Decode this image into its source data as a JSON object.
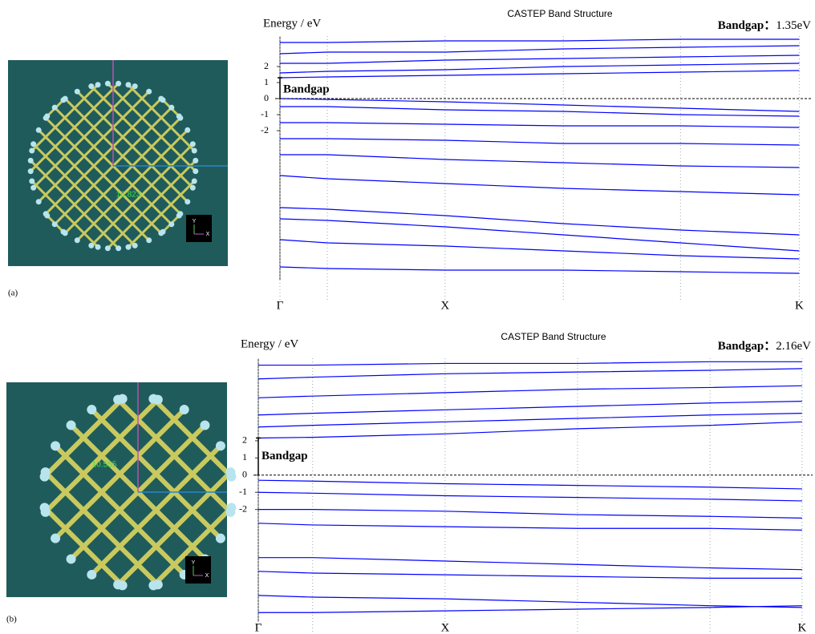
{
  "chart_data": [
    {
      "type": "line",
      "title": "CASTEP Band Structure",
      "y_label": "Energy / eV",
      "bandgap_label": "Bandgap：",
      "bandgap_value": "1.35eV",
      "annotation": "Bandgap",
      "line_color": "#0000ff",
      "zero_line": true,
      "x": [
        0,
        0.089,
        0.31,
        0.532,
        0.752,
        0.975
      ],
      "xlim": [
        0,
        1
      ],
      "xticks": [
        {
          "value": 0,
          "label": "Γ"
        },
        {
          "value": 0.089,
          "label": null
        },
        {
          "value": 0.31,
          "label": "X"
        },
        {
          "value": 0.532,
          "label": null
        },
        {
          "value": 0.752,
          "label": null
        },
        {
          "value": 0.975,
          "label": "K"
        }
      ],
      "ylim": [
        -11.35,
        3.9
      ],
      "yticks": [
        2,
        1,
        0,
        -1,
        -2
      ],
      "series": [
        {
          "values": [
            1.3,
            1.35,
            1.45,
            1.55,
            1.65,
            1.75
          ]
        },
        {
          "values": [
            1.6,
            1.7,
            1.8,
            2.0,
            2.1,
            2.2
          ]
        },
        {
          "values": [
            2.2,
            2.2,
            2.4,
            2.5,
            2.6,
            2.7
          ]
        },
        {
          "values": [
            2.8,
            2.9,
            2.9,
            3.1,
            3.2,
            3.3
          ]
        },
        {
          "values": [
            3.5,
            3.5,
            3.6,
            3.6,
            3.7,
            3.7
          ]
        },
        {
          "values": [
            0,
            -0.05,
            -0.2,
            -0.4,
            -0.6,
            -0.8
          ]
        },
        {
          "values": [
            -0.5,
            -0.5,
            -0.7,
            -0.8,
            -1,
            -1.1
          ]
        },
        {
          "values": [
            -1.5,
            -1.5,
            -1.6,
            -1.7,
            -1.7,
            -1.8
          ]
        },
        {
          "values": [
            -2.5,
            -2.5,
            -2.6,
            -2.8,
            -2.8,
            -2.9
          ]
        },
        {
          "values": [
            -3.5,
            -3.5,
            -3.8,
            -4,
            -4.2,
            -4.3
          ]
        },
        {
          "values": [
            -4.8,
            -5,
            -5.3,
            -5.6,
            -5.8,
            -6
          ]
        },
        {
          "values": [
            -6.8,
            -6.9,
            -7.3,
            -7.8,
            -8.2,
            -8.5
          ]
        },
        {
          "values": [
            -7.5,
            -7.6,
            -8,
            -8.5,
            -9,
            -9.5
          ]
        },
        {
          "values": [
            -8.8,
            -9,
            -9.2,
            -9.5,
            -9.8,
            -10
          ]
        },
        {
          "values": [
            -10.5,
            -10.6,
            -10.7,
            -10.7,
            -10.8,
            -10.9
          ]
        }
      ]
    },
    {
      "type": "line",
      "title": "CASTEP Band Structure",
      "y_label": "Energy / eV",
      "bandgap_label": "Bandgap：",
      "bandgap_value": "2.16eV",
      "annotation": "Bandgap",
      "line_color": "#0000ff",
      "zero_line": true,
      "x": [
        0,
        0.098,
        0.337,
        0.576,
        0.815,
        0.981
      ],
      "xlim": [
        0,
        1
      ],
      "xticks": [
        {
          "value": 0,
          "label": "Γ"
        },
        {
          "value": 0.098,
          "label": null
        },
        {
          "value": 0.337,
          "label": "X"
        },
        {
          "value": 0.576,
          "label": null
        },
        {
          "value": 0.815,
          "label": null
        },
        {
          "value": 0.981,
          "label": "K"
        }
      ],
      "ylim": [
        -8.5,
        6.8
      ],
      "yticks": [
        2,
        1,
        0,
        -1,
        -2
      ],
      "series": [
        {
          "values": [
            2.16,
            2.2,
            2.4,
            2.7,
            2.9,
            3.1
          ]
        },
        {
          "values": [
            2.8,
            2.9,
            3.1,
            3.3,
            3.5,
            3.6
          ]
        },
        {
          "values": [
            3.5,
            3.6,
            3.8,
            4,
            4.2,
            4.3
          ]
        },
        {
          "values": [
            4.5,
            4.6,
            4.8,
            5,
            5.1,
            5.2
          ]
        },
        {
          "values": [
            5.6,
            5.7,
            5.9,
            6,
            6.1,
            6.2
          ]
        },
        {
          "values": [
            6.4,
            6.4,
            6.5,
            6.5,
            6.6,
            6.6
          ]
        },
        {
          "values": [
            -0.3,
            -0.35,
            -0.5,
            -0.6,
            -0.7,
            -0.8
          ]
        },
        {
          "values": [
            -1,
            -1.05,
            -1.2,
            -1.3,
            -1.4,
            -1.5
          ]
        },
        {
          "values": [
            -2,
            -2,
            -2.1,
            -2.3,
            -2.4,
            -2.5
          ]
        },
        {
          "values": [
            -2.8,
            -2.9,
            -3,
            -3.1,
            -3.1,
            -3.2
          ]
        },
        {
          "values": [
            -4.8,
            -4.8,
            -5,
            -5.2,
            -5.4,
            -5.5
          ]
        },
        {
          "values": [
            -5.6,
            -5.7,
            -5.8,
            -5.9,
            -6,
            -6
          ]
        },
        {
          "values": [
            -7,
            -7.1,
            -7.2,
            -7.4,
            -7.6,
            -7.7
          ]
        },
        {
          "values": [
            -8,
            -8,
            -7.9,
            -7.8,
            -7.7,
            -7.6
          ]
        }
      ]
    }
  ],
  "panels": [
    {
      "label": "(a)",
      "structure_label": "16.823",
      "axis_labels": [
        "Y",
        "X"
      ]
    },
    {
      "label": "(b)",
      "structure_label": "10.555",
      "axis_labels": [
        "Y",
        "X"
      ]
    }
  ]
}
